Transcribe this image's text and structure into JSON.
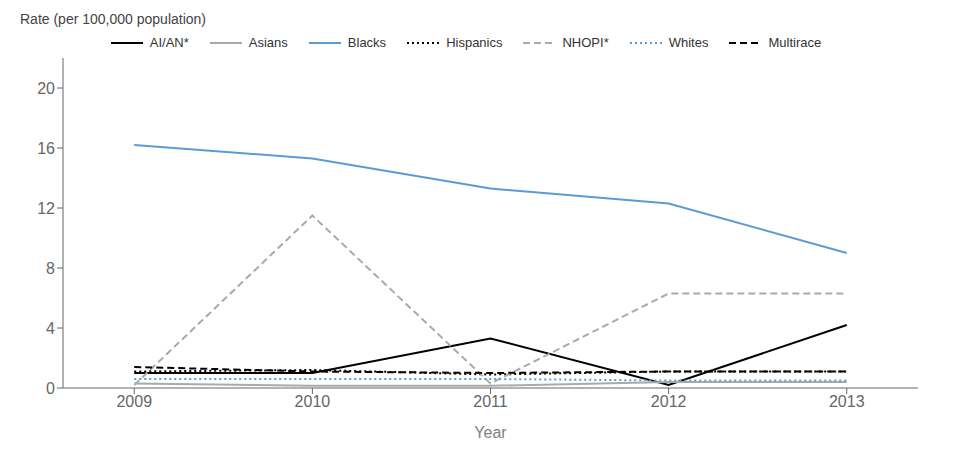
{
  "chart_data": {
    "type": "line",
    "xlabel": "Year",
    "ylabel": "Rate (per 100,000 population)",
    "x": [
      2009,
      2010,
      2011,
      2012,
      2013
    ],
    "series": [
      {
        "name": "AI/AN*",
        "color": "#000000",
        "line_style": "solid",
        "values": [
          1.0,
          1.0,
          3.3,
          0.2,
          4.2
        ]
      },
      {
        "name": "Asians",
        "color": "#aaaaaa",
        "line_style": "solid",
        "values": [
          0.3,
          0.15,
          0.15,
          0.4,
          0.4
        ]
      },
      {
        "name": "Blacks",
        "color": "#5B9BD5",
        "line_style": "solid",
        "values": [
          16.2,
          15.3,
          13.3,
          12.3,
          9.0
        ]
      },
      {
        "name": "Hispanics",
        "color": "#000000",
        "line_style": "dotted",
        "values": [
          1.1,
          1.2,
          0.9,
          1.1,
          1.1
        ]
      },
      {
        "name": "NHOPI*",
        "color": "#aaaaaa",
        "line_style": "dashed",
        "values": [
          0.2,
          11.5,
          0.3,
          6.3,
          6.3
        ]
      },
      {
        "name": "Whites",
        "color": "#5B9BD5",
        "line_style": "dotted",
        "values": [
          0.6,
          0.6,
          0.6,
          0.5,
          0.5
        ]
      },
      {
        "name": "Multirace",
        "color": "#000000",
        "line_style": "dashed",
        "values": [
          1.4,
          1.1,
          1.0,
          1.1,
          1.1
        ]
      }
    ],
    "xlim": [
      2008.6,
      2013.4
    ],
    "xticks": [
      2009,
      2010,
      2011,
      2012,
      2013
    ],
    "ylim": [
      0,
      22
    ],
    "yticks": [
      0,
      4,
      8,
      12,
      16,
      20
    ],
    "grid": false,
    "legend": "top"
  }
}
